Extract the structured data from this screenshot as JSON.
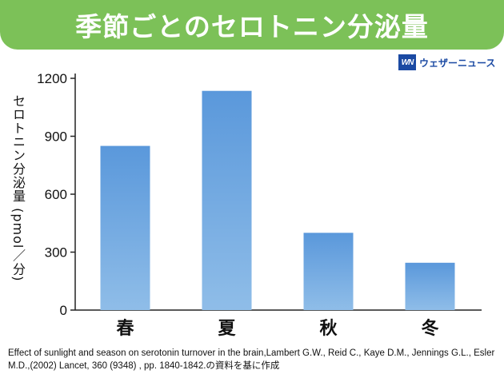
{
  "header": {
    "title": "季節ごとのセロトニン分泌量"
  },
  "brand": {
    "logo_text": "WN",
    "name": "ウェザーニュース",
    "color": "#1b4aa3"
  },
  "chart_data": {
    "type": "bar",
    "title": "季節ごとのセロトニン分泌量",
    "xlabel": "",
    "ylabel": "セロトニン分泌量 (pmol／分)",
    "categories": [
      "春",
      "夏",
      "秋",
      "冬"
    ],
    "values": [
      850,
      1135,
      400,
      245
    ],
    "ylim": [
      0,
      1200
    ],
    "yticks": [
      0,
      300,
      600,
      900,
      1200
    ],
    "grid": false,
    "bar_color": "#7aaee0"
  },
  "source": {
    "text": "Effect of sunlight and season on serotonin turnover in the brain,Lambert G.W., Reid C., Kaye D.M., Jennings G.L., Esler M.D.,(2002)  Lancet,  360  (9348) , pp. 1840-1842.の資料を基に作成"
  }
}
